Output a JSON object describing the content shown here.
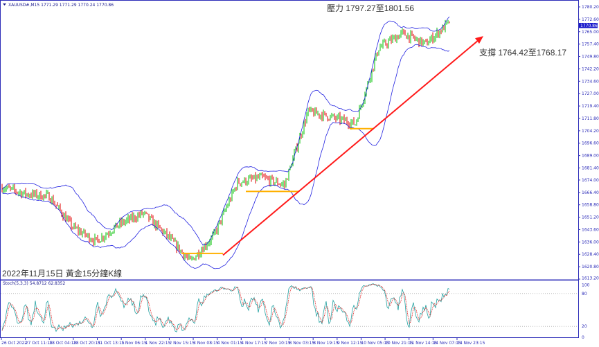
{
  "header": {
    "symbol_line": "XAUUSD#,M15  1771.29 1771.29 1770.24 1770.86"
  },
  "annotations": {
    "resistance": "壓力 1797.27至1801.56",
    "support": "支撐 1764.42至1768.17",
    "caption": "2022年11月15日 黃金15分鐘K線"
  },
  "current_price_label": "1770.86",
  "colors": {
    "bull": "#00c000",
    "bear": "#e00000",
    "bands": "#2020e0",
    "trendline": "#ff1a1a",
    "support_lines": "#ffb000",
    "axis": "#2b2bb8",
    "stoch_main": "#20a0a0",
    "stoch_signal": "#e02020"
  },
  "chart_data": [
    {
      "type": "candlestick",
      "title": "",
      "ylim": [
        1613.2,
        1780.2
      ],
      "y_ticks": [
        "1780.20",
        "1772.60",
        "1765.00",
        "1757.40",
        "1749.80",
        "1742.20",
        "1734.60",
        "1727.00",
        "1719.40",
        "1711.80",
        "1704.20",
        "1696.60",
        "1689.00",
        "1681.40",
        "1674.00",
        "1666.40",
        "1658.80",
        "1651.20",
        "1643.60",
        "1636.00",
        "1628.40",
        "1620.80",
        "1613.20"
      ],
      "x_ticks": [
        "26 Oct 2022",
        "27 Oct 11:15",
        "28 Oct 04:15",
        "28 Oct 20:15",
        "31 Oct 13:15",
        "1 Nov 06:15",
        "1 Nov 22:15",
        "2 Nov 15:15",
        "3 Nov 08:15",
        "4 Nov 01:15",
        "4 Nov 17:15",
        "7 Nov 10:15",
        "8 Nov 03:15",
        "8 Nov 19:15",
        "9 Nov 12:15",
        "10 Nov 05:15",
        "10 Nov 21:15",
        "11 Nov 14:15",
        "14 Nov 07:15",
        "14 Nov 23:15"
      ],
      "approx_close_path": [
        {
          "t": "26 Oct 2022",
          "price": 1669.6
        },
        {
          "t": "27 Oct 11:15",
          "price": 1665.5
        },
        {
          "t": "28 Oct 04:15",
          "price": 1664.0
        },
        {
          "t": "28 Oct 20:15",
          "price": 1645.0
        },
        {
          "t": "31 Oct 13:15",
          "price": 1636.5
        },
        {
          "t": "1 Nov 06:15",
          "price": 1647.0
        },
        {
          "t": "1 Nov 22:15",
          "price": 1653.5
        },
        {
          "t": "2 Nov 15:15",
          "price": 1640.0
        },
        {
          "t": "3 Nov 08:15",
          "price": 1624.0
        },
        {
          "t": "4 Nov 01:15",
          "price": 1640.0
        },
        {
          "t": "4 Nov 17:15",
          "price": 1672.5
        },
        {
          "t": "7 Nov 10:15",
          "price": 1675.5
        },
        {
          "t": "8 Nov 03:15",
          "price": 1671.0
        },
        {
          "t": "8 Nov 19:15",
          "price": 1716.0
        },
        {
          "t": "9 Nov 12:15",
          "price": 1712.5
        },
        {
          "t": "10 Nov 05:15",
          "price": 1708.5
        },
        {
          "t": "10 Nov 21:15",
          "price": 1755.0
        },
        {
          "t": "11 Nov 14:15",
          "price": 1764.0
        },
        {
          "t": "14 Nov 07:15",
          "price": 1757.5
        },
        {
          "t": "14 Nov 23:15",
          "price": 1770.86
        }
      ],
      "indicators": [
        "Bollinger Bands"
      ],
      "horizontal_levels": [
        1629.0,
        1667.0,
        1705.5
      ],
      "trendline": {
        "from": 1627.9,
        "to": 1762.3
      }
    },
    {
      "type": "line",
      "title": "Stoch(5,3,3) 54.8712 62.8352",
      "ylim": [
        0,
        100
      ],
      "y_ticks": [
        "100",
        "80",
        "20",
        "0"
      ],
      "series": [
        {
          "name": "main",
          "last": 54.8712
        },
        {
          "name": "signal",
          "last": 62.8352
        }
      ]
    }
  ]
}
